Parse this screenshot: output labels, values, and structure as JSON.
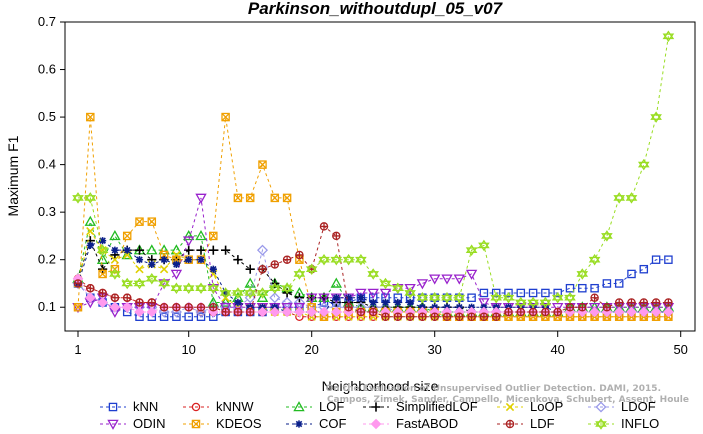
{
  "chart_data": {
    "type": "line",
    "title": "Parkinson_withoutdupl_05_v07",
    "xlabel": "Neighborhood size",
    "ylabel": "Maximum F1",
    "xlim": [
      0,
      50
    ],
    "ylim": [
      0.05,
      0.7
    ],
    "xticks": [
      "1",
      "10",
      "20",
      "30",
      "40",
      "50"
    ],
    "yticks": [
      "0.1",
      "0.2",
      "0.3",
      "0.4",
      "0.5",
      "0.6",
      "0.7"
    ],
    "credit": [
      "Campos, Zimek, Sander, Campello, Micenkova, Schubert, Assent, Houle",
      "On the Evaluation of Unsupervised Outlier Detection. DAMI, 2015."
    ],
    "legend_placement": "bottom",
    "grid": false,
    "series": [
      {
        "name": "kNN",
        "color": "#1f3fcf",
        "marker": "square",
        "values": [
          0.15,
          0.12,
          0.11,
          0.1,
          0.09,
          0.08,
          0.08,
          0.08,
          0.08,
          0.08,
          0.08,
          0.08,
          0.09,
          0.09,
          0.09,
          0.09,
          0.1,
          0.1,
          0.1,
          0.1,
          0.11,
          0.11,
          0.11,
          0.12,
          0.12,
          0.12,
          0.12,
          0.12,
          0.12,
          0.12,
          0.12,
          0.12,
          0.12,
          0.13,
          0.13,
          0.13,
          0.13,
          0.13,
          0.13,
          0.13,
          0.14,
          0.14,
          0.14,
          0.15,
          0.15,
          0.17,
          0.18,
          0.2,
          0.2
        ]
      },
      {
        "name": "kNNW",
        "color": "#d92020",
        "marker": "circle",
        "values": [
          0.16,
          0.14,
          0.13,
          0.12,
          0.12,
          0.11,
          0.11,
          0.1,
          0.1,
          0.1,
          0.09,
          0.09,
          0.09,
          0.09,
          0.09,
          0.09,
          0.09,
          0.09,
          0.08,
          0.08,
          0.08,
          0.08,
          0.08,
          0.08,
          0.08,
          0.08,
          0.08,
          0.08,
          0.08,
          0.08,
          0.08,
          0.08,
          0.08,
          0.08,
          0.08,
          0.08,
          0.08,
          0.08,
          0.08,
          0.08,
          0.08,
          0.08,
          0.08,
          0.08,
          0.08,
          0.08,
          0.08,
          0.08,
          0.08
        ]
      },
      {
        "name": "LOF",
        "color": "#22bb22",
        "marker": "triangle-up",
        "values": [
          0.16,
          0.28,
          0.2,
          0.25,
          0.21,
          0.22,
          0.22,
          0.22,
          0.22,
          0.25,
          0.25,
          0.11,
          0.11,
          0.12,
          0.15,
          0.12,
          0.15,
          0.14,
          0.13,
          0.12,
          0.12,
          0.15,
          0.11,
          0.1,
          0.1,
          0.1,
          0.1,
          0.1,
          0.1,
          0.09,
          0.09,
          0.09,
          0.09,
          0.09,
          0.09,
          0.09,
          0.09,
          0.09,
          0.09,
          0.09,
          0.1,
          0.1,
          0.1,
          0.1,
          0.1,
          0.1,
          0.1,
          0.1,
          0.1
        ]
      },
      {
        "name": "SimplifiedLOF",
        "color": "#000000",
        "marker": "plus",
        "values": [
          0.16,
          0.24,
          0.18,
          0.21,
          0.22,
          0.22,
          0.2,
          0.2,
          0.2,
          0.22,
          0.22,
          0.22,
          0.22,
          0.2,
          0.18,
          0.18,
          0.15,
          0.13,
          0.12,
          0.12,
          0.12,
          0.11,
          0.11,
          0.11,
          0.1,
          0.1,
          0.1,
          0.1,
          0.1,
          0.1,
          0.1,
          0.1,
          0.09,
          0.09,
          0.09,
          0.09,
          0.09,
          0.09,
          0.09,
          0.09,
          0.09,
          0.09,
          0.09,
          0.09,
          0.09,
          0.09,
          0.09,
          0.09,
          0.09
        ]
      },
      {
        "name": "LoOP",
        "color": "#e0d000",
        "marker": "cross",
        "values": [
          0.15,
          0.26,
          0.22,
          0.2,
          0.21,
          0.18,
          0.19,
          0.18,
          0.21,
          0.2,
          0.2,
          0.17,
          0.12,
          0.1,
          0.1,
          0.1,
          0.09,
          0.09,
          0.09,
          0.08,
          0.08,
          0.08,
          0.08,
          0.08,
          0.08,
          0.08,
          0.08,
          0.08,
          0.08,
          0.08,
          0.08,
          0.08,
          0.08,
          0.08,
          0.08,
          0.08,
          0.08,
          0.08,
          0.08,
          0.08,
          0.08,
          0.08,
          0.08,
          0.08,
          0.08,
          0.08,
          0.08,
          0.08,
          0.08
        ]
      },
      {
        "name": "LDOF",
        "color": "#9a9aea",
        "marker": "diamond",
        "values": [
          0.15,
          0.12,
          0.11,
          0.1,
          0.1,
          0.1,
          0.1,
          0.09,
          0.09,
          0.1,
          0.09,
          0.1,
          0.1,
          0.1,
          0.12,
          0.22,
          0.12,
          0.11,
          0.11,
          0.1,
          0.1,
          0.1,
          0.1,
          0.1,
          0.1,
          0.1,
          0.09,
          0.09,
          0.09,
          0.09,
          0.09,
          0.09,
          0.09,
          0.09,
          0.09,
          0.09,
          0.09,
          0.09,
          0.09,
          0.09,
          0.09,
          0.09,
          0.09,
          0.09,
          0.09,
          0.09,
          0.09,
          0.09,
          0.09
        ]
      },
      {
        "name": "ODIN",
        "color": "#9922cc",
        "marker": "triangle-down",
        "values": [
          0.1,
          0.11,
          0.12,
          0.09,
          0.1,
          0.1,
          0.1,
          0.15,
          0.17,
          0.24,
          0.33,
          0.14,
          0.1,
          0.1,
          0.1,
          0.1,
          0.1,
          0.1,
          0.1,
          0.12,
          0.12,
          0.12,
          0.12,
          0.13,
          0.13,
          0.13,
          0.14,
          0.14,
          0.15,
          0.16,
          0.16,
          0.16,
          0.17,
          0.11,
          0.1,
          0.1,
          0.1,
          0.1,
          0.1,
          0.1,
          0.1,
          0.1,
          0.1,
          0.1,
          0.1,
          0.1,
          0.1,
          0.1,
          0.1
        ]
      },
      {
        "name": "KDEOS",
        "color": "#f0a000",
        "marker": "square-x",
        "values": [
          0.1,
          0.5,
          0.17,
          0.18,
          0.25,
          0.28,
          0.28,
          0.21,
          0.2,
          0.2,
          0.2,
          0.25,
          0.5,
          0.33,
          0.33,
          0.4,
          0.33,
          0.33,
          0.2,
          0.1,
          0.08,
          0.09,
          0.09,
          0.09,
          0.09,
          0.09,
          0.09,
          0.09,
          0.09,
          0.09,
          0.08,
          0.08,
          0.08,
          0.08,
          0.08,
          0.08,
          0.08,
          0.08,
          0.08,
          0.08,
          0.08,
          0.08,
          0.08,
          0.08,
          0.08,
          0.08,
          0.08,
          0.08,
          0.08
        ]
      },
      {
        "name": "COF",
        "color": "#0a1f8a",
        "marker": "star",
        "values": [
          0.15,
          0.23,
          0.24,
          0.22,
          0.22,
          0.2,
          0.19,
          0.2,
          0.19,
          0.2,
          0.2,
          0.18,
          0.13,
          0.11,
          0.1,
          0.1,
          0.1,
          0.09,
          0.09,
          0.09,
          0.09,
          0.12,
          0.12,
          0.12,
          0.11,
          0.11,
          0.11,
          0.11,
          0.1,
          0.1,
          0.1,
          0.1,
          0.1,
          0.1,
          0.1,
          0.1,
          0.1,
          0.1,
          0.1,
          0.09,
          0.09,
          0.09,
          0.09,
          0.09,
          0.09,
          0.09,
          0.09,
          0.09,
          0.09
        ]
      },
      {
        "name": "FastABOD",
        "color": "#ff99ee",
        "marker": "diamond-filled",
        "values": [
          0.16,
          0.12,
          0.11,
          0.1,
          0.1,
          0.09,
          0.09,
          0.1,
          0.1,
          0.1,
          0.1,
          0.09,
          0.09,
          0.09,
          0.09,
          0.09,
          0.09,
          0.09,
          0.09,
          0.09,
          0.09,
          0.09,
          0.09,
          0.09,
          0.09,
          0.09,
          0.09,
          0.09,
          0.09,
          0.09,
          0.09,
          0.09,
          0.09,
          0.09,
          0.09,
          0.09,
          0.09,
          0.09,
          0.09,
          0.09,
          0.09,
          0.09,
          0.09,
          0.09,
          0.09,
          0.09,
          0.09,
          0.09,
          0.09
        ]
      },
      {
        "name": "LDF",
        "color": "#aa2222",
        "marker": "circle-plus",
        "values": [
          0.15,
          0.14,
          0.13,
          0.12,
          0.12,
          0.11,
          0.11,
          0.1,
          0.1,
          0.1,
          0.1,
          0.1,
          0.09,
          0.09,
          0.09,
          0.18,
          0.19,
          0.2,
          0.21,
          0.18,
          0.27,
          0.25,
          0.1,
          0.09,
          0.09,
          0.08,
          0.08,
          0.08,
          0.08,
          0.08,
          0.08,
          0.08,
          0.08,
          0.08,
          0.08,
          0.09,
          0.09,
          0.09,
          0.09,
          0.09,
          0.1,
          0.1,
          0.12,
          0.1,
          0.11,
          0.11,
          0.11,
          0.11,
          0.11
        ]
      },
      {
        "name": "INFLO",
        "color": "#99dd22",
        "marker": "hexstar",
        "values": [
          0.33,
          0.33,
          0.22,
          0.17,
          0.15,
          0.15,
          0.16,
          0.15,
          0.14,
          0.14,
          0.14,
          0.14,
          0.13,
          0.13,
          0.13,
          0.13,
          0.14,
          0.14,
          0.17,
          0.18,
          0.2,
          0.2,
          0.2,
          0.2,
          0.17,
          0.15,
          0.14,
          0.13,
          0.12,
          0.12,
          0.12,
          0.12,
          0.22,
          0.23,
          0.12,
          0.12,
          0.11,
          0.11,
          0.11,
          0.12,
          0.12,
          0.17,
          0.2,
          0.25,
          0.33,
          0.33,
          0.4,
          0.5,
          0.67
        ]
      }
    ]
  }
}
